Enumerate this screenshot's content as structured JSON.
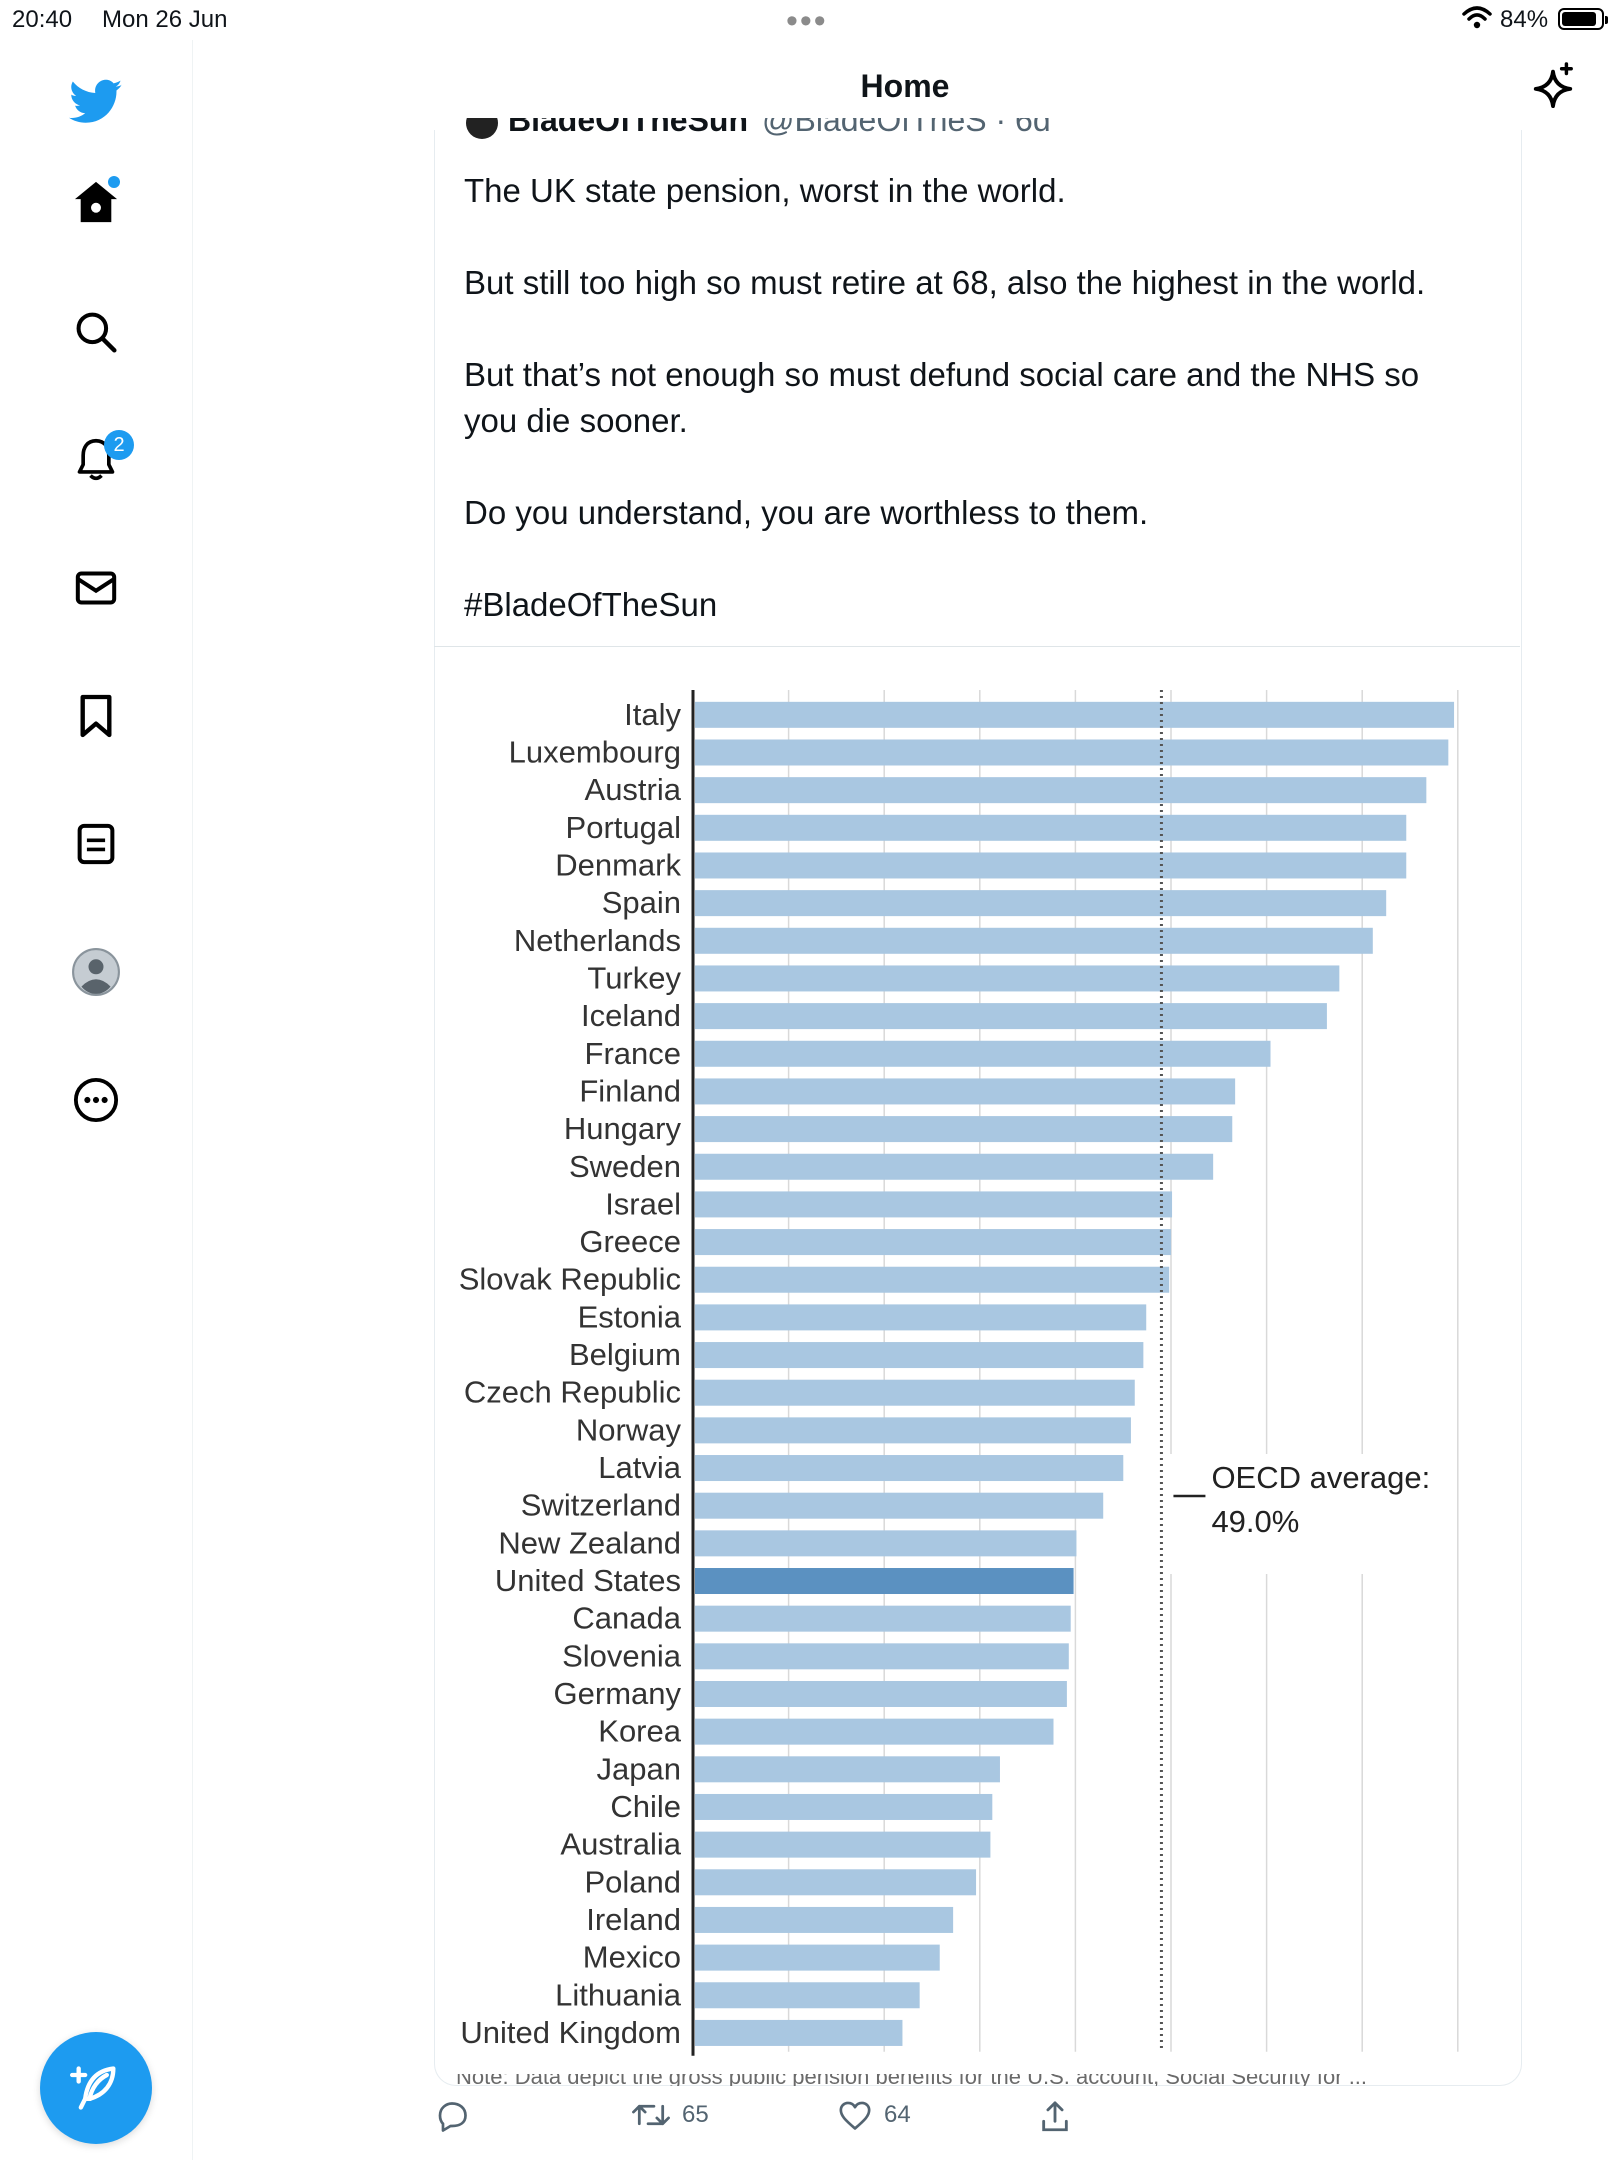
{
  "status_bar": {
    "time": "20:40",
    "date": "Mon 26 Jun",
    "battery_pct": "84%"
  },
  "header": {
    "title": "Home"
  },
  "sidebar": {
    "items": [
      {
        "name": "home",
        "has_dot": true
      },
      {
        "name": "search"
      },
      {
        "name": "notifications",
        "badge": "2"
      },
      {
        "name": "messages"
      },
      {
        "name": "bookmarks"
      },
      {
        "name": "lists"
      },
      {
        "name": "profile"
      },
      {
        "name": "more"
      }
    ]
  },
  "tweet": {
    "author_cut": "BladeOfTheSun",
    "handle_cut": "@BladeOfTheS · 6d",
    "lines": [
      "The UK state pension, worst in the world.",
      "But still too high so must retire at 68, also the highest in the  world.",
      "But that’s not enough so must defund social care and the NHS so you die sooner.",
      "Do you understand, you are worthless to them.",
      "#BladeOfTheSun"
    ],
    "note_cut": "Note: Data depict the gross public pension benefits for the U.S. account, Social Security for ...",
    "stats": {
      "retweets": "65",
      "likes": "64"
    }
  },
  "chart_data": {
    "type": "bar",
    "orientation": "horizontal",
    "categories": [
      "Italy",
      "Luxembourg",
      "Austria",
      "Portugal",
      "Denmark",
      "Spain",
      "Netherlands",
      "Turkey",
      "Iceland",
      "France",
      "Finland",
      "Hungary",
      "Sweden",
      "Israel",
      "Greece",
      "Slovak Republic",
      "Estonia",
      "Belgium",
      "Czech Republic",
      "Norway",
      "Latvia",
      "Switzerland",
      "New Zealand",
      "United States",
      "Canada",
      "Slovenia",
      "Germany",
      "Korea",
      "Japan",
      "Chile",
      "Australia",
      "Poland",
      "Ireland",
      "Mexico",
      "Lithuania",
      "United Kingdom"
    ],
    "values": [
      79.4,
      78.8,
      76.5,
      74.4,
      74.4,
      72.3,
      70.9,
      67.4,
      66.1,
      60.2,
      56.5,
      56.2,
      54.2,
      49.9,
      49.8,
      49.6,
      47.2,
      46.9,
      46.0,
      45.6,
      44.8,
      42.7,
      39.9,
      39.6,
      39.3,
      39.1,
      38.9,
      37.5,
      31.9,
      31.1,
      30.9,
      29.4,
      27.0,
      25.6,
      23.5,
      21.7
    ],
    "highlight": "United States",
    "colors": {
      "bar": "#a9c7e1",
      "highlight": "#5b91c1",
      "grid": "#d9d9d9",
      "reference_line": "#555555"
    },
    "reference_line": {
      "value": 49.0,
      "label_line1": "OECD average:",
      "label_line2": "49.0%"
    },
    "xlim": [
      0,
      80
    ],
    "grid": true
  }
}
